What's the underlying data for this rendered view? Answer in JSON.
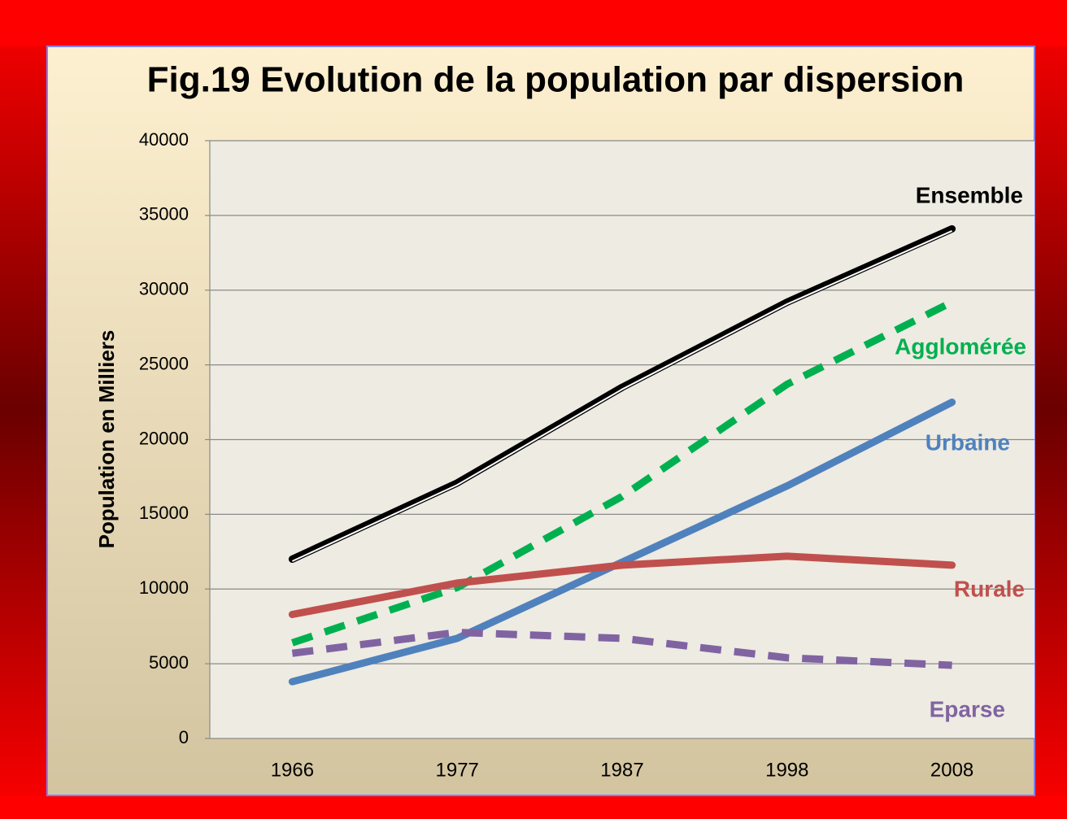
{
  "chart_data": {
    "type": "line",
    "title": "Fig.19 Evolution de la population par dispersion",
    "y_label": "Population en Milliers",
    "categories": [
      "1966",
      "1977",
      "1987",
      "1998",
      "2008"
    ],
    "series": [
      {
        "name": "Ensemble",
        "color": "#000000",
        "values": [
          12000,
          17100,
          23500,
          29200,
          34100
        ]
      },
      {
        "name": "Agglomérée",
        "color": "#00b050",
        "dashed": true,
        "values": [
          6400,
          10100,
          16200,
          23700,
          29200
        ]
      },
      {
        "name": "Urbaine",
        "color": "#4f81bd",
        "values": [
          3800,
          6700,
          11800,
          16900,
          22500
        ]
      },
      {
        "name": "Rurale",
        "color": "#c0504d",
        "values": [
          8300,
          10400,
          11600,
          12200,
          11600
        ]
      },
      {
        "name": "Eparse",
        "color": "#8064a2",
        "dashed": true,
        "values": [
          5700,
          7100,
          6700,
          5400,
          4900
        ]
      }
    ],
    "ylim": [
      0,
      40000
    ],
    "yticks": [
      0,
      5000,
      10000,
      15000,
      20000,
      25000,
      30000,
      35000,
      40000
    ],
    "grid": true
  }
}
